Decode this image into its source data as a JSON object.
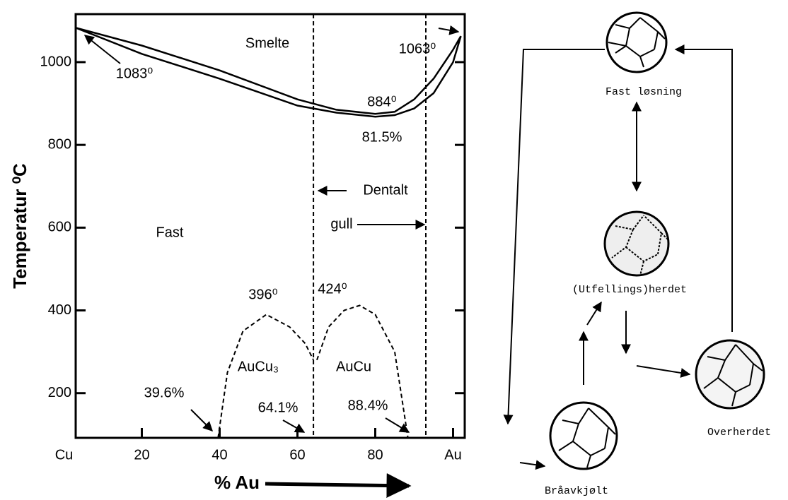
{
  "chart_data": {
    "type": "line",
    "xlabel": "% Au",
    "ylabel": "Temperatur ⁰C",
    "xlim": [
      3,
      103
    ],
    "ylim": [
      92,
      1116
    ],
    "xticks": [
      {
        "value": 0,
        "label": "Cu"
      },
      20,
      40,
      60,
      80,
      {
        "value": 100,
        "label": "Au"
      }
    ],
    "yticks": [
      200,
      400,
      600,
      800,
      1000
    ],
    "series": [
      {
        "color": "#000000",
        "style": "solid",
        "x": [
          3,
          20,
          40,
          60,
          70,
          80,
          85,
          90,
          95,
          100,
          102
        ],
        "values": [
          1083,
          1040,
          980,
          910,
          885,
          875,
          880,
          910,
          960,
          1030,
          1063
        ]
      },
      {
        "color": "#000000",
        "style": "solid",
        "x": [
          3,
          20,
          40,
          60,
          70,
          80,
          85,
          90,
          95,
          100,
          102
        ],
        "values": [
          1083,
          1020,
          960,
          895,
          878,
          868,
          872,
          888,
          925,
          1000,
          1063
        ]
      },
      {
        "color": "#000000",
        "style": "dashed",
        "x": [
          39.6,
          42,
          46,
          52,
          58,
          62,
          64.1
        ],
        "values": [
          92,
          250,
          350,
          390,
          360,
          320,
          280
        ]
      },
      {
        "color": "#000000",
        "style": "dashed",
        "x": [
          65,
          68,
          72,
          76,
          80,
          85,
          88.4
        ],
        "values": [
          280,
          360,
          400,
          412,
          390,
          300,
          92
        ]
      },
      {
        "color": "#000000",
        "style": "dashed",
        "x": [
          64.1,
          64.1
        ],
        "values": [
          1116,
          92
        ]
      },
      {
        "color": "#000000",
        "style": "dashed",
        "x": [
          93,
          93
        ],
        "values": [
          1116,
          92
        ]
      }
    ],
    "annotations": [
      "Smelte",
      "1083⁰",
      "1063⁰",
      "884⁰",
      "81.5%",
      "Dentalt",
      "gull",
      "Fast",
      "396⁰",
      "424⁰",
      "AuCu₃",
      "AuCu",
      "39.6%",
      "64.1%",
      "88.4%"
    ]
  },
  "diagram": {
    "nodes": [
      {
        "label": "Fast løsning"
      },
      {
        "label": "(Utfellings)herdet"
      },
      {
        "label": "Overherdet"
      },
      {
        "label": "Bråavkjølt"
      }
    ]
  }
}
